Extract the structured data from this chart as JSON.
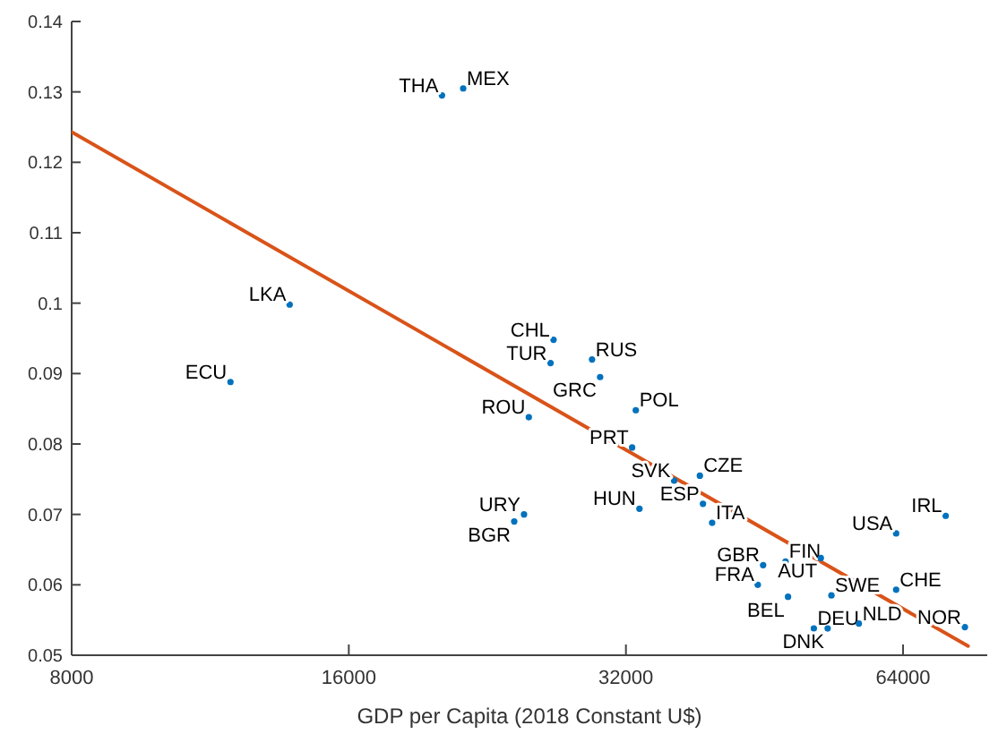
{
  "chart_data": {
    "type": "scatter",
    "xlabel": "GDP per Capita (2018 Constant U$)",
    "log": "x",
    "xlim": [
      8000,
      79000
    ],
    "ylim": [
      0.05,
      0.14
    ],
    "xticks": [
      8000,
      16000,
      32000,
      64000
    ],
    "yticks": [
      0.05,
      0.06,
      0.07,
      0.08,
      0.09,
      0.1,
      0.11,
      0.12,
      0.13,
      0.14
    ],
    "grid": false,
    "legend": false,
    "marker": "circle",
    "series": [
      {
        "color": "#0072bd",
        "x": [
          20200,
          21300,
          13800,
          11900,
          25100,
          26700,
          26500,
          29400,
          30000,
          32800,
          32500,
          36100,
          38500,
          33100,
          38800,
          39700,
          24800,
          24200,
          45100,
          47700,
          52100,
          44500,
          48000,
          53500,
          62900,
          71200,
          62900,
          74700,
          51200,
          53000,
          57300
        ],
        "values": [
          0.1295,
          0.1305,
          0.0998,
          0.0888,
          0.0838,
          0.0948,
          0.0915,
          0.092,
          0.0895,
          0.0848,
          0.0795,
          0.0748,
          0.0755,
          0.0708,
          0.0715,
          0.0688,
          0.07,
          0.069,
          0.0628,
          0.0633,
          0.0638,
          0.06,
          0.0583,
          0.0585,
          0.0673,
          0.0698,
          0.0593,
          0.054,
          0.0538,
          0.0538,
          0.0545
        ],
        "value_labels": [
          "THA",
          "MEX",
          "LKA",
          "ECU",
          "ROU",
          "CHL",
          "TUR",
          "RUS",
          "GRC",
          "POL",
          "PRT",
          "SVK",
          "CZE",
          "HUN",
          "ESP",
          "ITA",
          "URY",
          "BGR",
          "GBR",
          "FIN",
          "AUT",
          "FRA",
          "BEL",
          "SWE",
          "USA",
          "IRL",
          "CHE",
          "NOR",
          "DEU",
          "DNK",
          "NLD"
        ]
      },
      {
        "type": "line",
        "marker": "none",
        "color": "#d95319",
        "x": [
          8000,
          75300
        ],
        "values": [
          0.1243,
          0.0513
        ]
      }
    ]
  }
}
